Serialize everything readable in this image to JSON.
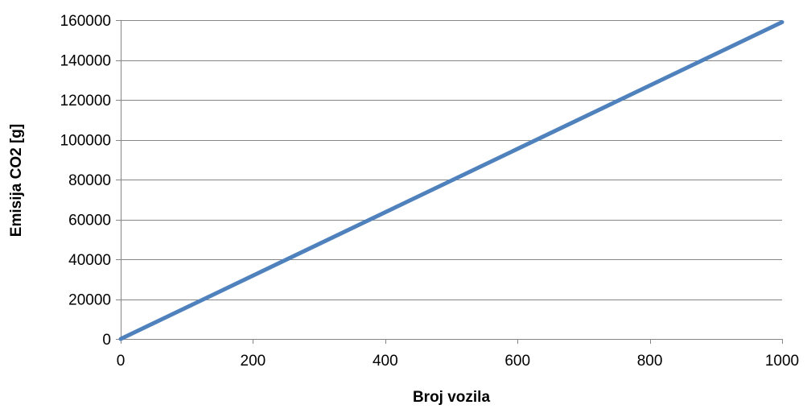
{
  "chart_data": {
    "type": "line",
    "title": "",
    "xlabel": "Broj vozila",
    "ylabel": "Emisija CO2 [g]",
    "xlim": [
      0,
      1000
    ],
    "ylim": [
      0,
      160000
    ],
    "x_ticks": [
      0,
      200,
      400,
      600,
      800,
      1000
    ],
    "y_ticks": [
      0,
      20000,
      40000,
      60000,
      80000,
      100000,
      120000,
      140000,
      160000
    ],
    "grid": "horizontal",
    "legend": "none",
    "series": [
      {
        "color": "#4f81bd",
        "x": [
          0,
          1000
        ],
        "y": [
          0,
          159000
        ]
      }
    ]
  },
  "colors": {
    "line": "#4f81bd",
    "grid": "#868686",
    "axis": "#868686"
  }
}
